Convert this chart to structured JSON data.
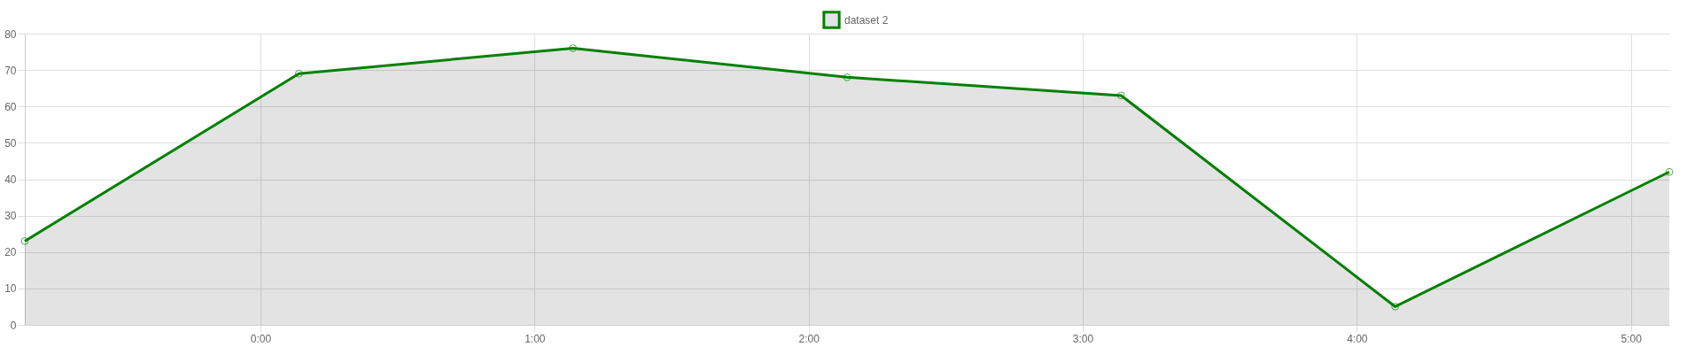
{
  "chart_data": {
    "type": "area",
    "x": [
      -0.86,
      0.14,
      1.14,
      2.14,
      3.14,
      4.14,
      5.14
    ],
    "series": [
      {
        "name": "dataset 2",
        "color": "#008000",
        "values": [
          23,
          69,
          76,
          68,
          63,
          5,
          42
        ]
      }
    ],
    "xlim": [
      -0.86,
      5.14
    ],
    "xticks": [
      {
        "value": 0,
        "label": "0:00"
      },
      {
        "value": 1,
        "label": "1:00"
      },
      {
        "value": 2,
        "label": "2:00"
      },
      {
        "value": 3,
        "label": "3:00"
      },
      {
        "value": 4,
        "label": "4:00"
      },
      {
        "value": 5,
        "label": "5:00"
      }
    ],
    "ylim": [
      0,
      80
    ],
    "yticks": [
      0,
      10,
      20,
      30,
      40,
      50,
      60,
      70,
      80
    ],
    "grid": true,
    "legend": "top",
    "marker": "circle",
    "line_style": "solid"
  }
}
